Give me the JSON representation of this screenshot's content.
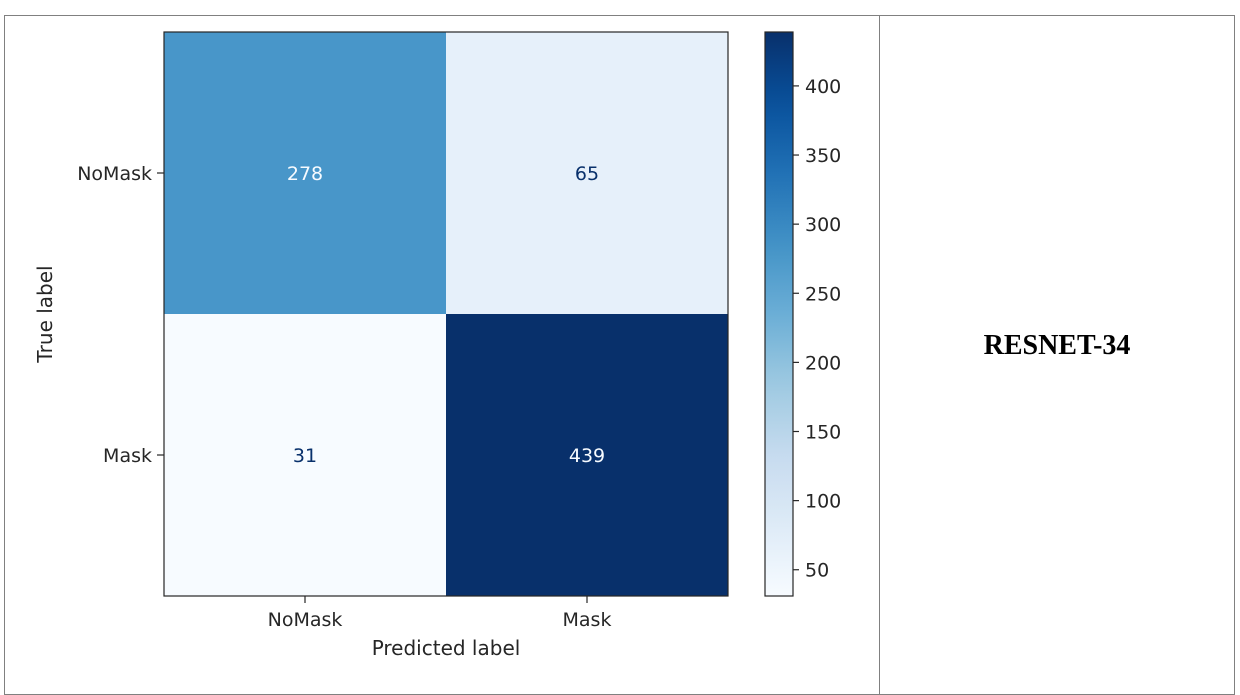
{
  "model_label": "RESNET-34",
  "chart_data": {
    "type": "heatmap",
    "title": "",
    "xlabel": "Predicted label",
    "ylabel": "True label",
    "x_categories": [
      "NoMask",
      "Mask"
    ],
    "y_categories": [
      "NoMask",
      "Mask"
    ],
    "values": [
      [
        278,
        65
      ],
      [
        31,
        439
      ]
    ],
    "colormap": "Blues",
    "colorbar": {
      "min": 31,
      "max": 439,
      "ticks": [
        50,
        100,
        150,
        200,
        250,
        300,
        350,
        400
      ]
    }
  }
}
